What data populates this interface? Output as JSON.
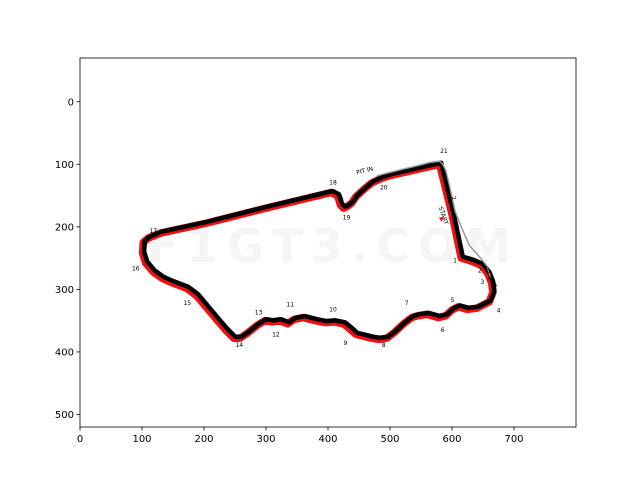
{
  "chart_data": {
    "type": "scatter",
    "title": "",
    "xlabel": "",
    "ylabel": "",
    "xlim": [
      0,
      800
    ],
    "ylim": [
      520,
      -70
    ],
    "y_inverted": true,
    "grid": false,
    "xticks": [
      0,
      100,
      200,
      300,
      400,
      500,
      600,
      700
    ],
    "yticks": [
      0,
      100,
      200,
      300,
      400,
      500
    ],
    "watermark": "F1GT3.COM",
    "colors": {
      "racing_line": "#ee1111",
      "track": "#000000",
      "pit_lane": "#999999",
      "start_marker": "#ee1111"
    },
    "series": [
      {
        "name": "",
        "role": "track",
        "x": [
          580,
          600,
          615,
          632,
          648,
          658,
          664,
          666,
          660,
          640,
          625,
          610,
          600,
          590,
          578,
          560,
          545,
          535,
          522,
          508,
          495,
          482,
          470,
          458,
          445,
          435,
          425,
          410,
          395,
          380,
          360,
          345,
          335,
          322,
          310,
          298,
          285,
          270,
          258,
          248,
          235,
          222,
          205,
          188,
          172,
          158,
          145,
          132,
          118,
          106,
          101,
          102,
          110,
          130,
          200,
          300,
          405,
          415,
          418,
          420,
          425,
          430,
          438,
          445,
          458,
          470,
          485,
          500,
          580
        ],
        "y": [
          100,
          180,
          250,
          255,
          262,
          275,
          290,
          305,
          320,
          330,
          332,
          328,
          333,
          342,
          345,
          340,
          342,
          345,
          355,
          368,
          378,
          380,
          378,
          375,
          372,
          363,
          355,
          352,
          353,
          350,
          345,
          348,
          355,
          350,
          352,
          350,
          358,
          370,
          378,
          378,
          365,
          350,
          330,
          310,
          298,
          293,
          288,
          282,
          272,
          258,
          242,
          225,
          218,
          210,
          195,
          170,
          145,
          150,
          158,
          165,
          170,
          168,
          162,
          152,
          140,
          130,
          123,
          118,
          100
        ]
      },
      {
        "name": "",
        "role": "pit_lane",
        "x": [
          480,
          520,
          545,
          565,
          580,
          585,
          590,
          595,
          605,
          615,
          628,
          642,
          656,
          662
        ],
        "y": [
          118,
          108,
          102,
          97,
          95,
          100,
          110,
          130,
          175,
          200,
          230,
          245,
          262,
          280
        ]
      }
    ],
    "turn_labels": [
      {
        "text": "1",
        "x": 605,
        "y": 257
      },
      {
        "text": "2",
        "x": 645,
        "y": 273
      },
      {
        "text": "3",
        "x": 649,
        "y": 291
      },
      {
        "text": "4",
        "x": 675,
        "y": 337
      },
      {
        "text": "5",
        "x": 601,
        "y": 320
      },
      {
        "text": "6",
        "x": 585,
        "y": 368
      },
      {
        "text": "7",
        "x": 527,
        "y": 325
      },
      {
        "text": "8",
        "x": 490,
        "y": 392
      },
      {
        "text": "9",
        "x": 428,
        "y": 389
      },
      {
        "text": "10",
        "x": 408,
        "y": 335
      },
      {
        "text": "11",
        "x": 339,
        "y": 327
      },
      {
        "text": "12",
        "x": 316,
        "y": 375
      },
      {
        "text": "13",
        "x": 288,
        "y": 340
      },
      {
        "text": "14",
        "x": 257,
        "y": 392
      },
      {
        "text": "15",
        "x": 173,
        "y": 325
      },
      {
        "text": "16",
        "x": 90,
        "y": 270
      },
      {
        "text": "17",
        "x": 118,
        "y": 210
      },
      {
        "text": "18",
        "x": 408,
        "y": 132
      },
      {
        "text": "19",
        "x": 430,
        "y": 188
      },
      {
        "text": "20",
        "x": 490,
        "y": 140
      },
      {
        "text": "21",
        "x": 587,
        "y": 82
      }
    ],
    "annotations": [
      {
        "text": "PIT IN",
        "x": 460,
        "y": 113,
        "rotate": -14
      },
      {
        "text": "START",
        "x": 583,
        "y": 183,
        "rotate": 72
      },
      {
        "text": "PIT OUT",
        "x": 658,
        "y": 282,
        "rotate": 62
      },
      {
        "text": "2",
        "x": 600,
        "y": 155,
        "rotate": 72
      }
    ],
    "start_marker": {
      "x": 583,
      "y": 188
    }
  }
}
